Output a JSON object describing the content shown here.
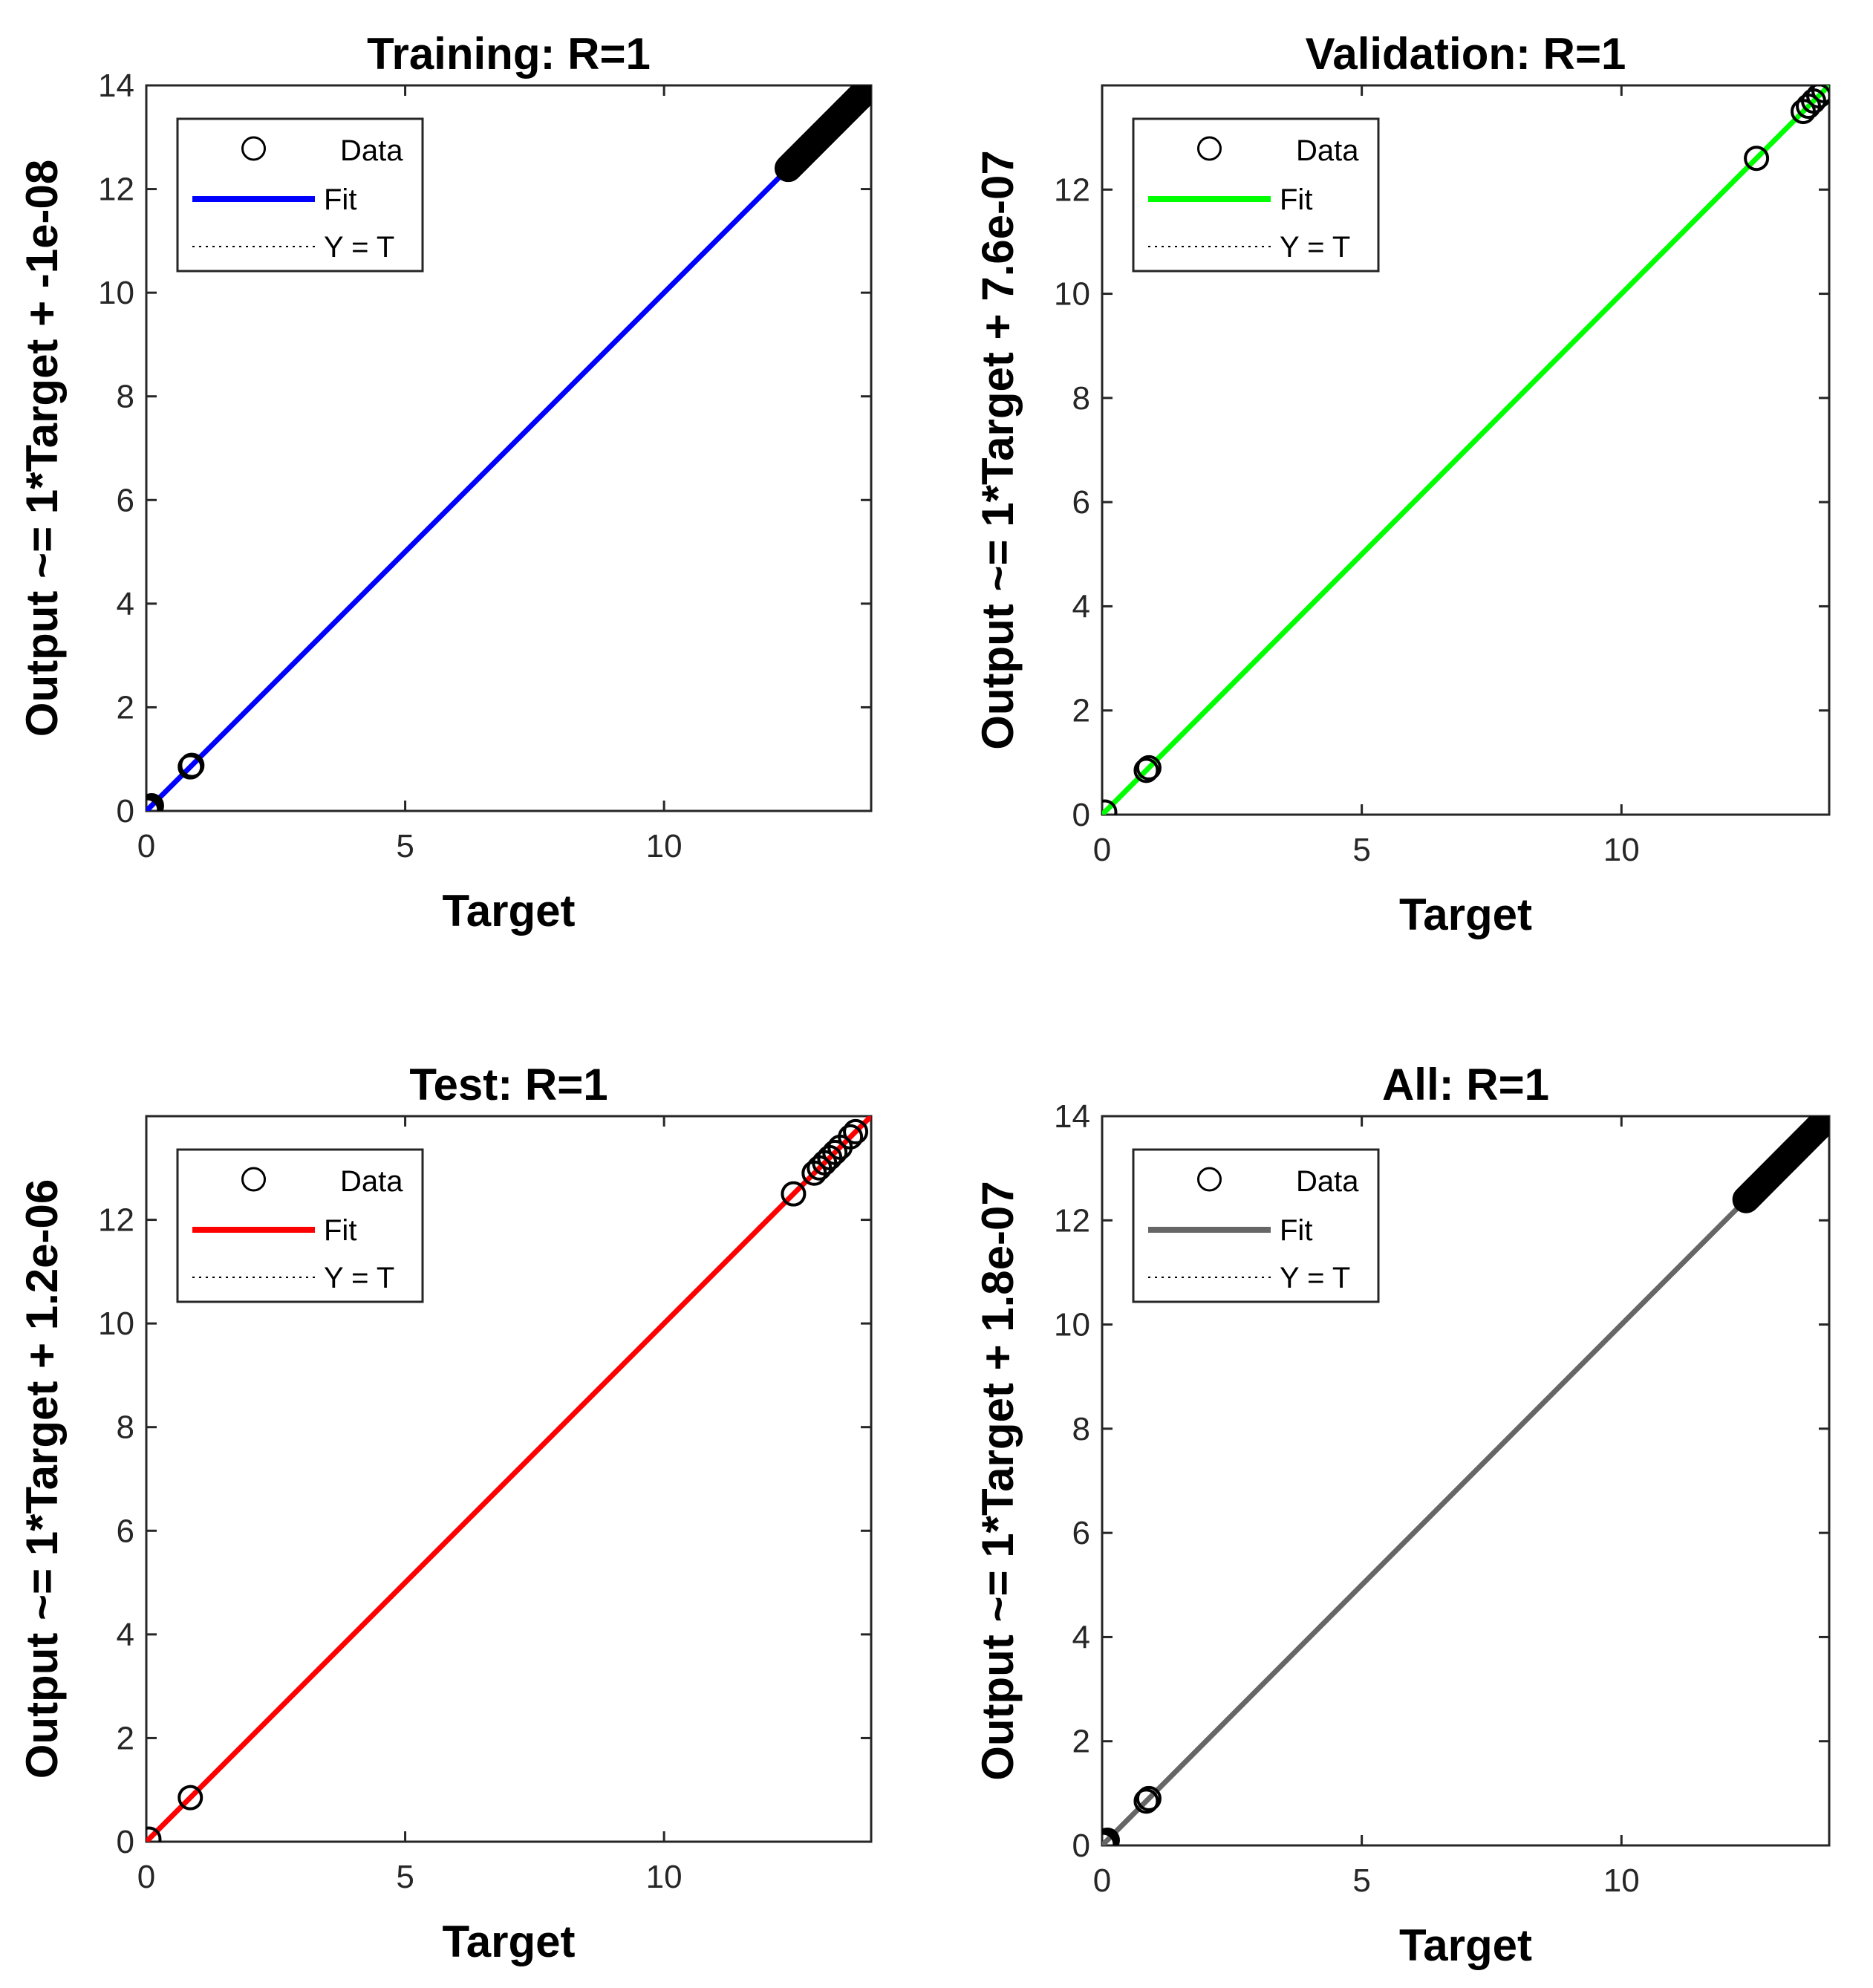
{
  "chart_data": [
    {
      "type": "scatter",
      "title": "Training: R=1",
      "xlabel": "Target",
      "ylabel": "Output ~= 1*Target + -1e-08",
      "xlim": [
        0,
        14
      ],
      "ylim": [
        0,
        14
      ],
      "xticks": [
        0,
        5,
        10
      ],
      "yticks": [
        0,
        2,
        4,
        6,
        8,
        10,
        12,
        14
      ],
      "legend_position": "top-left",
      "legend": {
        "data": "Data",
        "fit": "Fit",
        "identity": "Y = T"
      },
      "fit_color": "#0000ff",
      "fit": {
        "slope": 1,
        "intercept": -1e-08
      },
      "data_points": {
        "x": [
          0.02,
          0.06,
          0.1,
          0.85,
          0.88
        ],
        "y": [
          0.02,
          0.06,
          0.1,
          0.85,
          0.88
        ]
      },
      "dense_segment": {
        "from": 12.4,
        "to": 14.0
      }
    },
    {
      "type": "scatter",
      "title": "Validation: R=1",
      "xlabel": "Target",
      "ylabel": "Output ~= 1*Target + 7.6e-07",
      "xlim": [
        0,
        14
      ],
      "ylim": [
        0,
        14
      ],
      "xticks": [
        0,
        5,
        10
      ],
      "yticks": [
        0,
        2,
        4,
        6,
        8,
        10,
        12
      ],
      "legend_position": "top-left",
      "legend": {
        "data": "Data",
        "fit": "Fit",
        "identity": "Y = T"
      },
      "fit_color": "#00ff00",
      "fit": {
        "slope": 1,
        "intercept": 7.6e-07
      },
      "data_points": {
        "x": [
          0.05,
          0.85,
          0.9,
          12.6,
          13.5,
          13.6,
          13.7,
          13.8,
          13.9
        ],
        "y": [
          0.05,
          0.85,
          0.9,
          12.6,
          13.5,
          13.6,
          13.7,
          13.8,
          13.9
        ]
      }
    },
    {
      "type": "scatter",
      "title": "Test: R=1",
      "xlabel": "Target",
      "ylabel": "Output ~= 1*Target + 1.2e-06",
      "xlim": [
        0,
        14
      ],
      "ylim": [
        0,
        14
      ],
      "xticks": [
        0,
        5,
        10
      ],
      "yticks": [
        0,
        2,
        4,
        6,
        8,
        10,
        12
      ],
      "legend_position": "top-left",
      "legend": {
        "data": "Data",
        "fit": "Fit",
        "identity": "Y = T"
      },
      "fit_color": "#ff0000",
      "fit": {
        "slope": 1,
        "intercept": 1.2e-06
      },
      "data_points": {
        "x": [
          0.05,
          0.85,
          12.5,
          12.9,
          13.0,
          13.1,
          13.2,
          13.3,
          13.4,
          13.6,
          13.7
        ],
        "y": [
          0.05,
          0.85,
          12.5,
          12.9,
          13.0,
          13.1,
          13.2,
          13.3,
          13.4,
          13.6,
          13.7
        ]
      }
    },
    {
      "type": "scatter",
      "title": "All: R=1",
      "xlabel": "Target",
      "ylabel": "Output ~= 1*Target + 1.8e-07",
      "xlim": [
        0,
        14
      ],
      "ylim": [
        0,
        14
      ],
      "xticks": [
        0,
        5,
        10
      ],
      "yticks": [
        0,
        2,
        4,
        6,
        8,
        10,
        12,
        14
      ],
      "legend_position": "top-left",
      "legend": {
        "data": "Data",
        "fit": "Fit",
        "identity": "Y = T"
      },
      "fit_color": "#666666",
      "fit": {
        "slope": 1,
        "intercept": 1.8e-07
      },
      "data_points": {
        "x": [
          0.02,
          0.06,
          0.1,
          0.85,
          0.9
        ],
        "y": [
          0.02,
          0.06,
          0.1,
          0.85,
          0.9
        ]
      },
      "dense_segment": {
        "from": 12.4,
        "to": 14.0
      }
    }
  ]
}
